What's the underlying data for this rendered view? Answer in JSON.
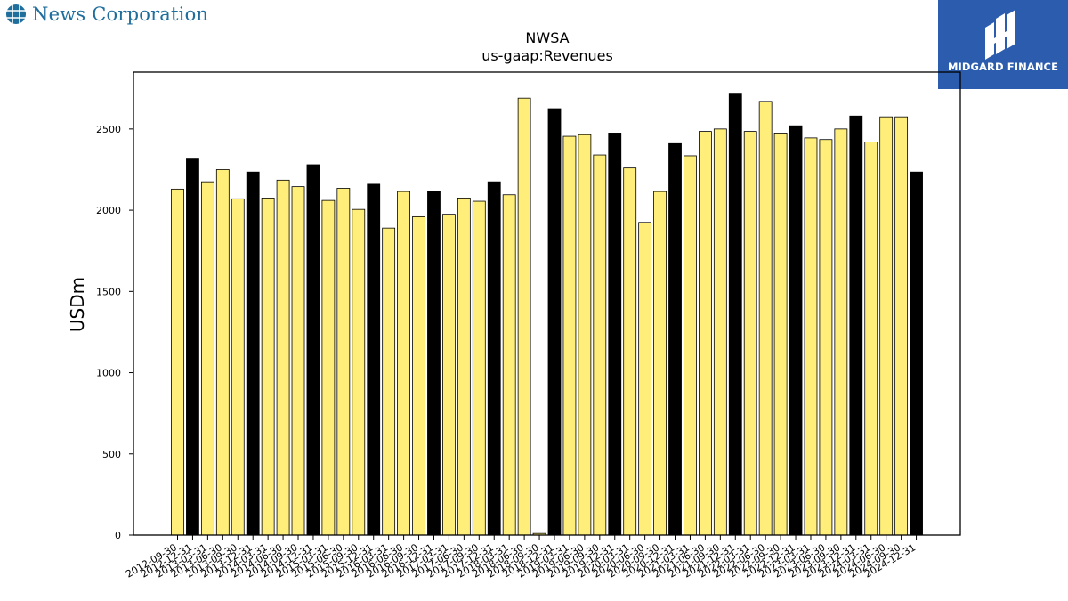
{
  "branding": {
    "company_name": "News Corporation",
    "company_logo_icon": "globe-grid-icon",
    "partner_name": "MIDGARD FINANCE",
    "partner_logo_icon": "m-monogram-icon",
    "partner_color": "#2b5cae",
    "company_color": "#1f6e9c"
  },
  "chart_data": {
    "type": "bar",
    "title": "NWSA",
    "subtitle": "us-gaap:Revenues",
    "xlabel": "",
    "ylabel": "USDm",
    "ylim": [
      0,
      2850
    ],
    "yticks": [
      0,
      500,
      1000,
      1500,
      2000,
      2500
    ],
    "grid": false,
    "legend": "none",
    "colors": {
      "quarter": "#ffef7a",
      "year_end": "#000000",
      "edge": "#000000"
    },
    "categories": [
      "2012-09-30",
      "2012-12-31",
      "2013-03-31",
      "2013-06-30",
      "2013-09-30",
      "2013-12-31",
      "2014-03-31",
      "2014-06-30",
      "2014-09-30",
      "2014-12-31",
      "2015-03-31",
      "2015-06-30",
      "2015-09-30",
      "2015-12-31",
      "2016-03-31",
      "2016-06-30",
      "2016-09-30",
      "2016-12-31",
      "2017-03-31",
      "2017-06-30",
      "2017-09-30",
      "2017-12-31",
      "2018-03-31",
      "2018-06-30",
      "2018-09-30",
      "2018-12-31",
      "2019-03-31",
      "2019-06-30",
      "2019-09-30",
      "2019-12-31",
      "2020-03-31",
      "2020-06-30",
      "2020-09-30",
      "2020-12-31",
      "2021-03-31",
      "2021-06-30",
      "2021-09-30",
      "2021-12-31",
      "2022-03-31",
      "2022-06-30",
      "2022-09-30",
      "2022-12-31",
      "2023-03-31",
      "2023-06-30",
      "2023-09-30",
      "2023-12-31",
      "2024-03-31",
      "2024-06-30",
      "2024-09-30",
      "2024-12-31"
    ],
    "tick_labels": [
      "2012-09-30",
      "2012-12-31",
      "2013-03-31",
      "2013-06-30",
      "2013-09-30",
      "2013-12-31",
      "2014-03-31",
      "2014-06-30",
      "2014-09-30",
      "2014-12-31",
      "2015-03-31",
      "2015-06-30",
      "2015-09-30",
      "2015-12-31",
      "2016-03-31",
      "2016-06-30",
      "2016-09-30",
      "2016-12-31",
      "2017-03-31",
      "2017-06-30",
      "2017-09-30",
      "2017-12-31",
      "2018-03-31",
      "2018-06-30",
      "2018-09-30",
      "2018-12-31",
      "2019-03-31",
      "2019-06-30",
      "2019-09-30",
      "2019-12-31",
      "2020-03-31",
      "2020-06-30",
      "2020-09-30",
      "2020-12-31",
      "2021-03-31",
      "2021-06-30",
      "2021-09-30",
      "2021-12-31",
      "2022-03-31",
      "2022-06-30",
      "2022-09-30",
      "2022-12-31",
      "2023-03-31",
      "2023-06-30",
      "2023-09-30",
      "2023-12-31",
      "2024-03-31",
      "2024-06-30",
      "2024-09-30",
      "2024-12-31"
    ],
    "values": [
      2130,
      2315,
      2175,
      2250,
      2070,
      2235,
      2075,
      2185,
      2145,
      2280,
      2060,
      2135,
      2005,
      2160,
      1890,
      2115,
      1960,
      2115,
      1975,
      2075,
      2055,
      2175,
      2095,
      2690,
      10,
      2625,
      2455,
      2465,
      2340,
      2475,
      2260,
      1925,
      2115,
      2410,
      2335,
      2485,
      2500,
      2715,
      2485,
      2670,
      2475,
      2520,
      2445,
      2435,
      2500,
      2580,
      2420,
      2575,
      2575,
      2235
    ],
    "is_year_end": [
      false,
      true,
      false,
      false,
      false,
      true,
      false,
      false,
      false,
      true,
      false,
      false,
      false,
      true,
      false,
      false,
      false,
      true,
      false,
      false,
      false,
      true,
      false,
      false,
      false,
      true,
      false,
      false,
      false,
      true,
      false,
      false,
      false,
      true,
      false,
      false,
      false,
      true,
      false,
      false,
      false,
      true,
      false,
      false,
      false,
      true,
      false,
      false,
      false,
      true
    ]
  }
}
